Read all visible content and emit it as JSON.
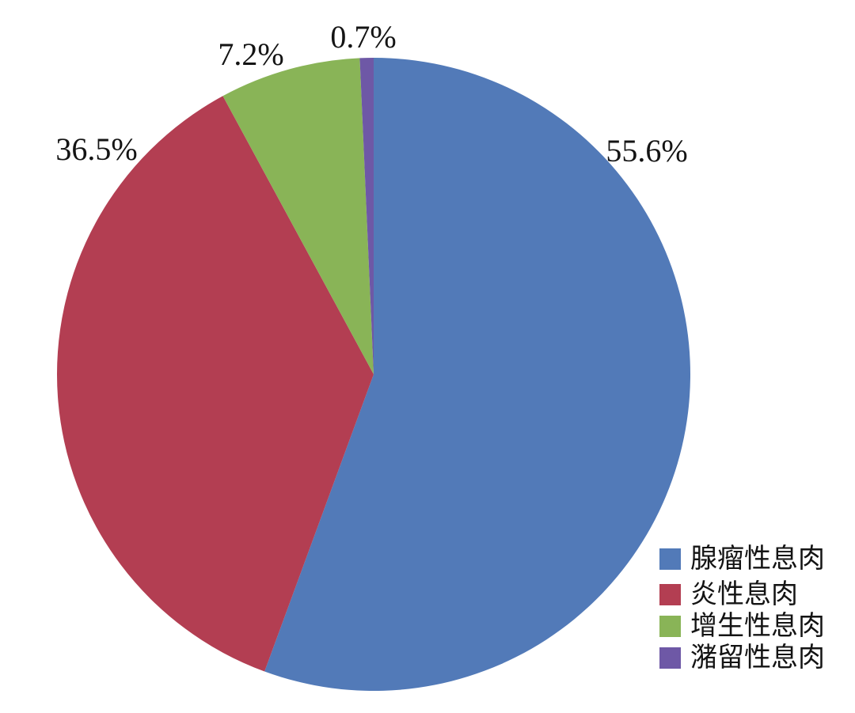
{
  "chart_data": {
    "type": "pie",
    "title": "",
    "unit": "%",
    "direction": "clockwise",
    "start_angle_clockwise_from_top_deg": 0,
    "legend_position": "bottom-right",
    "background_color": "#ffffff",
    "label_color": "#141414",
    "slices": [
      {
        "name": "腺瘤性息肉",
        "value": 55.6,
        "label": "55.6%",
        "color": "#527AB8"
      },
      {
        "name": "炎性息肉",
        "value": 36.5,
        "label": "36.5%",
        "color": "#B33E52"
      },
      {
        "name": "增生性息肉",
        "value": 7.2,
        "label": "7.2%",
        "color": "#89B457"
      },
      {
        "name": "潴留性息肉",
        "value": 0.7,
        "label": "0.7%",
        "color": "#6E58A6"
      }
    ]
  }
}
